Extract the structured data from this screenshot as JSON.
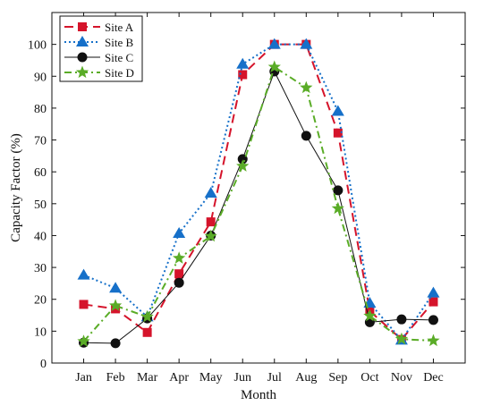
{
  "chart_data": {
    "type": "line",
    "categories": [
      "Jan",
      "Feb",
      "Mar",
      "Apr",
      "May",
      "Jun",
      "Jul",
      "Aug",
      "Sep",
      "Oct",
      "Nov",
      "Dec"
    ],
    "xlabel": "Month",
    "ylabel": "Capacity Factor (%)",
    "ylim": [
      0,
      110
    ],
    "yticks": [
      0,
      10,
      20,
      30,
      40,
      50,
      60,
      70,
      80,
      90,
      100
    ],
    "grid": false,
    "legend_position": "top-left",
    "series": [
      {
        "name": "Site A",
        "color": "#d5142b",
        "dash": "10,6",
        "marker": "square",
        "values": [
          18.4,
          17.0,
          9.6,
          28.0,
          44.3,
          90.5,
          100.0,
          100.0,
          72.2,
          16.3,
          7.4,
          19.2
        ]
      },
      {
        "name": "Site B",
        "color": "#1670c9",
        "dash": "2,3",
        "marker": "triangle",
        "values": [
          27.6,
          23.5,
          14.5,
          40.7,
          53.3,
          93.8,
          100.0,
          100.0,
          79.0,
          18.8,
          7.2,
          22.0
        ]
      },
      {
        "name": "Site C",
        "color": "#111111",
        "dash": "",
        "marker": "circle",
        "values": [
          6.4,
          6.2,
          14.0,
          25.2,
          40.0,
          64.0,
          91.5,
          71.3,
          54.2,
          12.8,
          13.7,
          13.5
        ]
      },
      {
        "name": "Site D",
        "color": "#5aac27",
        "dash": "8,4,2,4",
        "marker": "star",
        "values": [
          6.8,
          18.0,
          14.5,
          32.9,
          39.8,
          61.8,
          92.9,
          86.4,
          48.5,
          14.8,
          7.5,
          7.0
        ]
      }
    ]
  }
}
